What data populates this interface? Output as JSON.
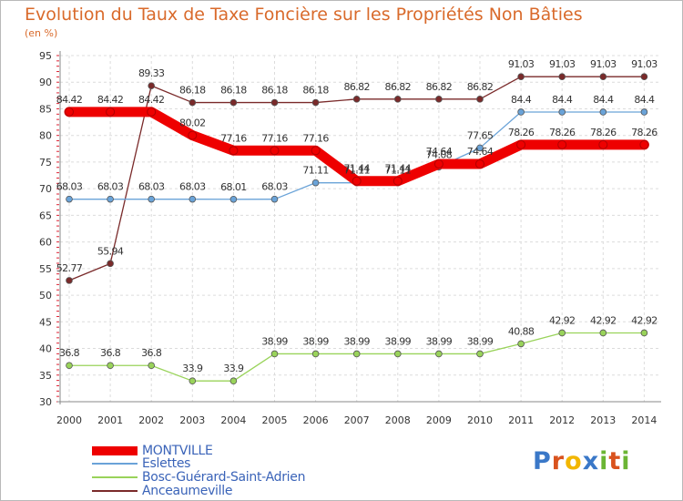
{
  "chart_data": {
    "type": "line",
    "title": "Evolution du Taux de Taxe Foncière sur les Propriétés Non Bâties",
    "ylabel": "(en %)",
    "xlabel": "",
    "categories": [
      "2000",
      "2001",
      "2002",
      "2003",
      "2004",
      "2005",
      "2006",
      "2007",
      "2008",
      "2009",
      "2010",
      "2011",
      "2012",
      "2013",
      "2014"
    ],
    "ylim": [
      30,
      95
    ],
    "yticks": [
      30,
      35,
      40,
      45,
      50,
      55,
      60,
      65,
      70,
      75,
      80,
      85,
      90,
      95
    ],
    "grid": true,
    "legend_position": "bottom-left",
    "series": [
      {
        "name": "MONTVILLE",
        "color": "#ee0000",
        "values": [
          84.42,
          84.42,
          84.42,
          80.02,
          77.16,
          77.16,
          77.16,
          71.44,
          71.44,
          74.64,
          74.64,
          78.26,
          78.26,
          78.26,
          78.26
        ],
        "labels": [
          "84.42",
          "84.42",
          "84.42",
          "80.02",
          "77.16",
          "77.16",
          "77.16",
          "71.44",
          "71.44",
          "74.64",
          "74.64",
          "78.26",
          "78.26",
          "78.26",
          "78.26"
        ]
      },
      {
        "name": "Eslettes",
        "color": "#6aa3d8",
        "values": [
          68.03,
          68.03,
          68.03,
          68.03,
          68.01,
          68.03,
          71.11,
          71.11,
          71.11,
          74.08,
          77.65,
          84.4,
          84.4,
          84.4,
          84.4
        ],
        "labels": [
          "68.03",
          "68.03",
          "68.03",
          "68.03",
          "68.01",
          "68.03",
          "71.11",
          "71.11",
          "71.11",
          "74.08",
          "77.65",
          "84.4",
          "84.4",
          "84.4",
          "84.4"
        ]
      },
      {
        "name": "Bosc-Guérard-Saint-Adrien",
        "color": "#99d35a",
        "values": [
          36.8,
          36.8,
          36.8,
          33.9,
          33.9,
          38.99,
          38.99,
          38.99,
          38.99,
          38.99,
          38.99,
          40.88,
          42.92,
          42.92,
          42.92
        ],
        "labels": [
          "36.8",
          "36.8",
          "36.8",
          "33.9",
          "33.9",
          "38.99",
          "38.99",
          "38.99",
          "38.99",
          "38.99",
          "38.99",
          "40.88",
          "42.92",
          "42.92",
          "42.92"
        ]
      },
      {
        "name": "Anceaumeville",
        "color": "#7a2a2a",
        "values": [
          52.77,
          55.94,
          89.33,
          86.18,
          86.18,
          86.18,
          86.18,
          86.82,
          86.82,
          86.82,
          86.82,
          91.03,
          91.03,
          91.03,
          91.03
        ],
        "labels": [
          "52.77",
          "55.94",
          "89.33",
          "86.18",
          "86.18",
          "86.18",
          "86.18",
          "86.82",
          "86.82",
          "86.82",
          "86.82",
          "91.03",
          "91.03",
          "91.03",
          "91.03"
        ]
      }
    ]
  },
  "logo": {
    "letters": [
      "P",
      "r",
      "o",
      "x",
      "i",
      "t",
      "i"
    ],
    "colors": [
      "#3a78c8",
      "#d9531e",
      "#f2b600",
      "#3a78c8",
      "#6bb534",
      "#d9531e",
      "#6bb534"
    ]
  }
}
